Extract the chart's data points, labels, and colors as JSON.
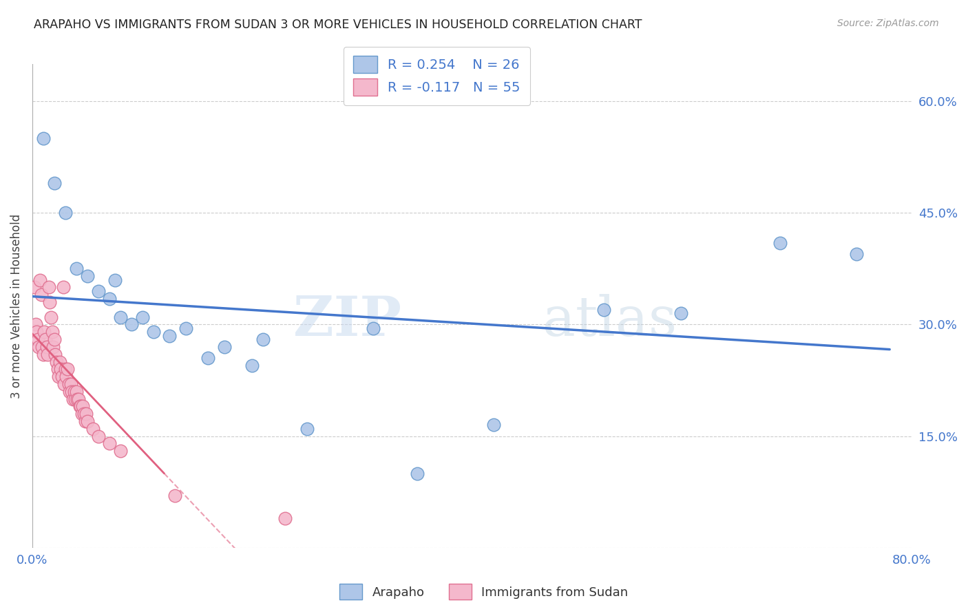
{
  "title": "ARAPAHO VS IMMIGRANTS FROM SUDAN 3 OR MORE VEHICLES IN HOUSEHOLD CORRELATION CHART",
  "source": "Source: ZipAtlas.com",
  "ylabel": "3 or more Vehicles in Household",
  "xlim": [
    0.0,
    0.8
  ],
  "ylim": [
    0.0,
    0.65
  ],
  "arapaho_color": "#aec6e8",
  "arapaho_edge": "#6699cc",
  "sudan_color": "#f4b8cc",
  "sudan_edge": "#e07090",
  "arapaho_line_color": "#4477cc",
  "sudan_line_color": "#e06080",
  "watermark": "ZIPatlas",
  "arapaho_x": [
    0.01,
    0.02,
    0.03,
    0.04,
    0.05,
    0.06,
    0.07,
    0.075,
    0.08,
    0.09,
    0.1,
    0.11,
    0.125,
    0.14,
    0.16,
    0.175,
    0.2,
    0.21,
    0.25,
    0.31,
    0.35,
    0.42,
    0.52,
    0.59,
    0.68,
    0.75
  ],
  "arapaho_y": [
    0.55,
    0.49,
    0.45,
    0.375,
    0.365,
    0.345,
    0.335,
    0.36,
    0.31,
    0.3,
    0.31,
    0.29,
    0.285,
    0.295,
    0.255,
    0.27,
    0.245,
    0.28,
    0.16,
    0.295,
    0.1,
    0.165,
    0.32,
    0.315,
    0.41,
    0.395
  ],
  "sudan_x": [
    0.002,
    0.003,
    0.004,
    0.005,
    0.006,
    0.007,
    0.008,
    0.009,
    0.01,
    0.011,
    0.012,
    0.013,
    0.014,
    0.015,
    0.016,
    0.017,
    0.018,
    0.019,
    0.02,
    0.021,
    0.022,
    0.023,
    0.024,
    0.025,
    0.026,
    0.027,
    0.028,
    0.029,
    0.03,
    0.031,
    0.032,
    0.033,
    0.034,
    0.035,
    0.036,
    0.037,
    0.038,
    0.039,
    0.04,
    0.041,
    0.042,
    0.043,
    0.044,
    0.045,
    0.046,
    0.047,
    0.048,
    0.049,
    0.05,
    0.055,
    0.06,
    0.07,
    0.08,
    0.13,
    0.23
  ],
  "sudan_y": [
    0.35,
    0.3,
    0.29,
    0.28,
    0.27,
    0.36,
    0.34,
    0.27,
    0.26,
    0.29,
    0.28,
    0.27,
    0.26,
    0.35,
    0.33,
    0.31,
    0.29,
    0.27,
    0.28,
    0.26,
    0.25,
    0.24,
    0.23,
    0.25,
    0.24,
    0.23,
    0.35,
    0.22,
    0.24,
    0.23,
    0.24,
    0.22,
    0.21,
    0.22,
    0.21,
    0.2,
    0.21,
    0.2,
    0.21,
    0.2,
    0.2,
    0.19,
    0.19,
    0.18,
    0.19,
    0.18,
    0.17,
    0.18,
    0.17,
    0.16,
    0.15,
    0.14,
    0.13,
    0.07,
    0.04
  ]
}
